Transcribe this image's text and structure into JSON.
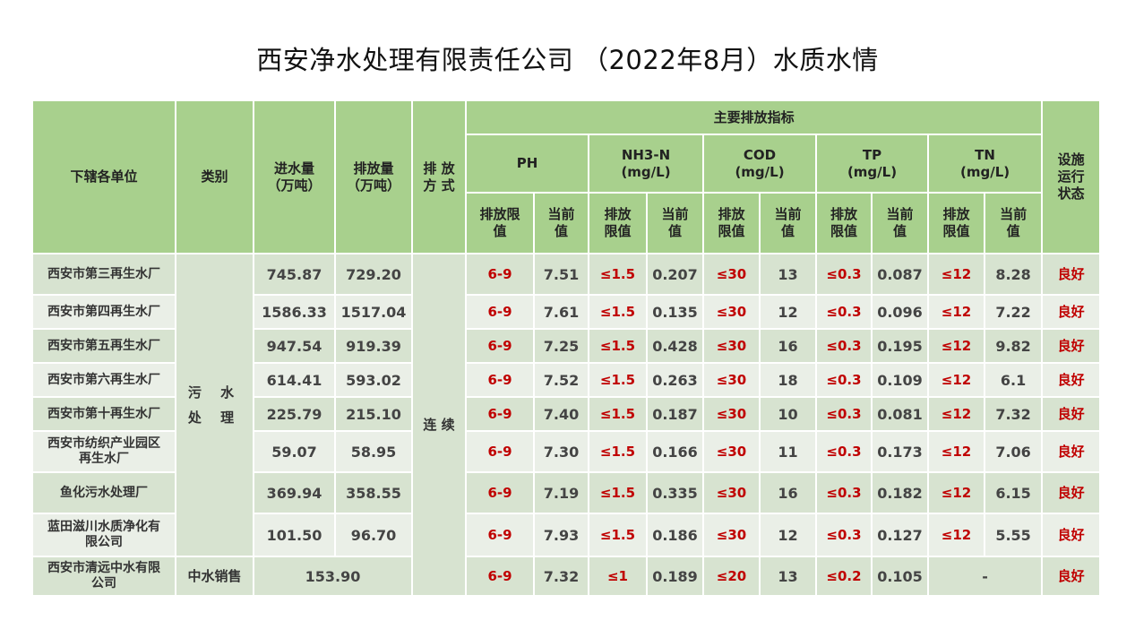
{
  "title": "西安净水处理有限责任公司 （2022年8月）水质水情",
  "headers": {
    "unit": "下辖各单位",
    "category": "类别",
    "inflow": [
      "进水量",
      "（万吨）"
    ],
    "outflow": [
      "排放量",
      "（万吨）"
    ],
    "method": [
      "排 放",
      "方 式"
    ],
    "indicators": "主要排放指标",
    "status": [
      "设施",
      "运行",
      "状态"
    ],
    "ph": "PH",
    "nh3n": [
      "NH3-N",
      "(mg/L)"
    ],
    "cod": [
      "COD",
      "(mg/L)"
    ],
    "tp": [
      "TP",
      "(mg/L)"
    ],
    "tn": [
      "TN",
      "(mg/L)"
    ],
    "limit_ph": [
      "排放限",
      "值"
    ],
    "current": [
      "当前",
      "值"
    ],
    "limit": [
      "排放",
      "限值"
    ]
  },
  "category_wastewater": [
    "污 水",
    "处 理"
  ],
  "method_value": "连 续",
  "rows": [
    {
      "unit": [
        "西安市第三再生水厂"
      ],
      "inflow": "745.87",
      "outflow": "729.20",
      "ph_limit": "6-9",
      "ph": "7.51",
      "nh3_limit": "≤1.5",
      "nh3": "0.207",
      "cod_limit": "≤30",
      "cod": "13",
      "tp_limit": "≤0.3",
      "tp": "0.087",
      "tn_limit": "≤12",
      "tn": "8.28",
      "status": "良好"
    },
    {
      "unit": [
        "西安市第四再生水厂"
      ],
      "inflow": "1586.33",
      "outflow": "1517.04",
      "ph_limit": "6-9",
      "ph": "7.61",
      "nh3_limit": "≤1.5",
      "nh3": "0.135",
      "cod_limit": "≤30",
      "cod": "12",
      "tp_limit": "≤0.3",
      "tp": "0.096",
      "tn_limit": "≤12",
      "tn": "7.22",
      "status": "良好"
    },
    {
      "unit": [
        "西安市第五再生水厂"
      ],
      "inflow": "947.54",
      "outflow": "919.39",
      "ph_limit": "6-9",
      "ph": "7.25",
      "nh3_limit": "≤1.5",
      "nh3": "0.428",
      "cod_limit": "≤30",
      "cod": "16",
      "tp_limit": "≤0.3",
      "tp": "0.195",
      "tn_limit": "≤12",
      "tn": "9.82",
      "status": "良好"
    },
    {
      "unit": [
        "西安市第六再生水厂"
      ],
      "inflow": "614.41",
      "outflow": "593.02",
      "ph_limit": "6-9",
      "ph": "7.52",
      "nh3_limit": "≤1.5",
      "nh3": "0.263",
      "cod_limit": "≤30",
      "cod": "18",
      "tp_limit": "≤0.3",
      "tp": "0.109",
      "tn_limit": "≤12",
      "tn": "6.1",
      "status": "良好"
    },
    {
      "unit": [
        "西安市第十再生水厂"
      ],
      "inflow": "225.79",
      "outflow": "215.10",
      "ph_limit": "6-9",
      "ph": "7.40",
      "nh3_limit": "≤1.5",
      "nh3": "0.187",
      "cod_limit": "≤30",
      "cod": "10",
      "tp_limit": "≤0.3",
      "tp": "0.081",
      "tn_limit": "≤12",
      "tn": "7.32",
      "status": "良好"
    },
    {
      "unit": [
        "西安市纺织产业园区",
        "再生水厂"
      ],
      "inflow": "59.07",
      "outflow": "58.95",
      "ph_limit": "6-9",
      "ph": "7.30",
      "nh3_limit": "≤1.5",
      "nh3": "0.166",
      "cod_limit": "≤30",
      "cod": "11",
      "tp_limit": "≤0.3",
      "tp": "0.173",
      "tn_limit": "≤12",
      "tn": "7.06",
      "status": "良好"
    },
    {
      "unit": [
        "鱼化污水处理厂"
      ],
      "inflow": "369.94",
      "outflow": "358.55",
      "ph_limit": "6-9",
      "ph": "7.19",
      "nh3_limit": "≤1.5",
      "nh3": "0.335",
      "cod_limit": "≤30",
      "cod": "16",
      "tp_limit": "≤0.3",
      "tp": "0.182",
      "tn_limit": "≤12",
      "tn": "6.15",
      "status": "良好"
    },
    {
      "unit": [
        "蓝田滋川水质净化有",
        "限公司"
      ],
      "inflow": "101.50",
      "outflow": "96.70",
      "ph_limit": "6-9",
      "ph": "7.93",
      "nh3_limit": "≤1.5",
      "nh3": "0.186",
      "cod_limit": "≤30",
      "cod": "12",
      "tp_limit": "≤0.3",
      "tp": "0.127",
      "tn_limit": "≤12",
      "tn": "5.55",
      "status": "良好"
    }
  ],
  "last_row": {
    "unit": [
      "西安市清远中水有限",
      "公司"
    ],
    "category": "中水销售",
    "volume": "153.90",
    "ph_limit": "6-9",
    "ph": "7.32",
    "nh3_limit": "≤1",
    "nh3": "0.189",
    "cod_limit": "≤20",
    "cod": "13",
    "tp_limit": "≤0.2",
    "tp": "0.105",
    "tn": "-",
    "status": "良好"
  },
  "colors": {
    "header_bg": "#a8d08d",
    "row_light": "#eaefe7",
    "row_dark": "#d7e3d0",
    "limit_text": "#c00000"
  }
}
